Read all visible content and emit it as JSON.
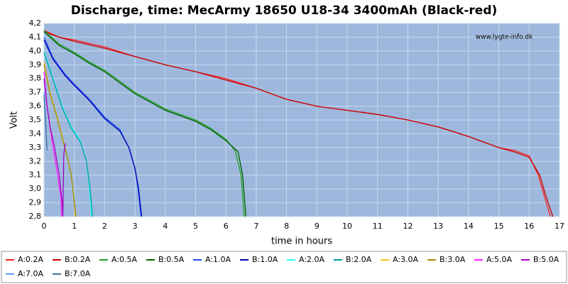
{
  "chart_data": {
    "type": "line",
    "title": "Discharge, time: MecArmy 18650 U18-34 3400mAh (Black-red)",
    "watermark": "www.lygte-info.dk",
    "xlabel": "time in hours",
    "ylabel": "Volt",
    "xlim": [
      0,
      17
    ],
    "ylim": [
      2.8,
      4.2
    ],
    "xticks": [
      0,
      1,
      2,
      3,
      4,
      5,
      6,
      7,
      8,
      9,
      10,
      11,
      12,
      13,
      14,
      15,
      16,
      17
    ],
    "yticks": [
      {
        "value": 2.8,
        "label": "2,8"
      },
      {
        "value": 2.9,
        "label": "2,9"
      },
      {
        "value": 3.0,
        "label": "3,0"
      },
      {
        "value": 3.1,
        "label": "3,1"
      },
      {
        "value": 3.2,
        "label": "3,2"
      },
      {
        "value": 3.3,
        "label": "3,3"
      },
      {
        "value": 3.4,
        "label": "3,4"
      },
      {
        "value": 3.5,
        "label": "3,5"
      },
      {
        "value": 3.6,
        "label": "3,6"
      },
      {
        "value": 3.7,
        "label": "3,7"
      },
      {
        "value": 3.8,
        "label": "3,8"
      },
      {
        "value": 3.9,
        "label": "3,9"
      },
      {
        "value": 4.0,
        "label": "4,0"
      },
      {
        "value": 4.1,
        "label": "4,1"
      },
      {
        "value": 4.2,
        "label": "4,2"
      }
    ],
    "grid": true,
    "background": "#9db8dc",
    "series": [
      {
        "name": "A:0.2A",
        "color": "#ff2020",
        "x": [
          0,
          0.5,
          1,
          2,
          3,
          4,
          5,
          6,
          7,
          8,
          9,
          10,
          11,
          12,
          13,
          14,
          15,
          15.5,
          16,
          16.3,
          16.5,
          16.7
        ],
        "values": [
          4.15,
          4.1,
          4.08,
          4.03,
          3.96,
          3.9,
          3.85,
          3.8,
          3.73,
          3.65,
          3.6,
          3.57,
          3.54,
          3.5,
          3.45,
          3.38,
          3.3,
          3.28,
          3.24,
          3.1,
          2.95,
          2.8
        ]
      },
      {
        "name": "B:0.2A",
        "color": "#c80000",
        "x": [
          0,
          0.5,
          1,
          2,
          3,
          4,
          5,
          6,
          7,
          8,
          9,
          10,
          11,
          12,
          13,
          14,
          15,
          15.5,
          16,
          16.35,
          16.55,
          16.78
        ],
        "values": [
          4.14,
          4.1,
          4.07,
          4.02,
          3.96,
          3.9,
          3.85,
          3.79,
          3.73,
          3.65,
          3.6,
          3.57,
          3.54,
          3.5,
          3.45,
          3.38,
          3.3,
          3.27,
          3.23,
          3.1,
          2.95,
          2.8
        ]
      },
      {
        "name": "A:0.5A",
        "color": "#20a020",
        "x": [
          0,
          0.5,
          1,
          1.5,
          2,
          3,
          4,
          5,
          5.5,
          6,
          6.3,
          6.5,
          6.6
        ],
        "values": [
          4.15,
          4.05,
          3.99,
          3.92,
          3.86,
          3.7,
          3.58,
          3.5,
          3.44,
          3.36,
          3.28,
          3.1,
          2.8
        ]
      },
      {
        "name": "B:0.5A",
        "color": "#006000",
        "x": [
          0,
          0.5,
          1,
          1.5,
          2,
          3,
          4,
          5,
          5.5,
          6,
          6.4,
          6.55,
          6.66
        ],
        "values": [
          4.14,
          4.04,
          3.98,
          3.91,
          3.85,
          3.69,
          3.57,
          3.49,
          3.43,
          3.35,
          3.27,
          3.1,
          2.8
        ]
      },
      {
        "name": "A:1.0A",
        "color": "#2050ff",
        "x": [
          0,
          0.3,
          0.7,
          1,
          1.5,
          2,
          2.5,
          2.8,
          3,
          3.1,
          3.2
        ],
        "values": [
          4.1,
          3.95,
          3.83,
          3.76,
          3.65,
          3.52,
          3.43,
          3.3,
          3.15,
          3.0,
          2.8
        ]
      },
      {
        "name": "B:1.0A",
        "color": "#0000b0",
        "x": [
          0,
          0.3,
          0.7,
          1,
          1.5,
          2,
          2.5,
          2.8,
          3,
          3.12,
          3.22
        ],
        "values": [
          4.08,
          3.94,
          3.82,
          3.75,
          3.64,
          3.51,
          3.42,
          3.3,
          3.15,
          3.0,
          2.8
        ]
      },
      {
        "name": "A:2.0A",
        "color": "#20ffff",
        "x": [
          0,
          0.3,
          0.6,
          0.9,
          1.2,
          1.4,
          1.5,
          1.57
        ],
        "values": [
          4.0,
          3.8,
          3.6,
          3.45,
          3.35,
          3.2,
          3.0,
          2.8
        ]
      },
      {
        "name": "B:2.0A",
        "color": "#00a0a0",
        "x": [
          0,
          0.3,
          0.6,
          0.9,
          1.2,
          1.4,
          1.52,
          1.6
        ],
        "values": [
          3.99,
          3.79,
          3.59,
          3.44,
          3.34,
          3.2,
          3.0,
          2.8
        ]
      },
      {
        "name": "A:3.0A",
        "color": "#ffc020",
        "x": [
          0,
          0.2,
          0.4,
          0.6,
          0.75,
          0.9,
          1.0,
          1.03
        ],
        "values": [
          3.92,
          3.7,
          3.55,
          3.38,
          3.25,
          3.1,
          2.9,
          2.8
        ]
      },
      {
        "name": "B:3.0A",
        "color": "#a09000",
        "x": [
          0,
          0.2,
          0.4,
          0.6,
          0.75,
          0.9,
          1.0,
          1.05
        ],
        "values": [
          3.9,
          3.69,
          3.54,
          3.37,
          3.25,
          3.1,
          2.9,
          2.8
        ]
      },
      {
        "name": "A:5.0A",
        "color": "#ff20ff",
        "x": [
          0,
          0.1,
          0.2,
          0.3,
          0.45,
          0.55,
          0.58
        ],
        "values": [
          3.85,
          3.6,
          3.45,
          3.3,
          3.1,
          2.95,
          2.8
        ]
      },
      {
        "name": "B:5.0A",
        "color": "#a000c0",
        "x": [
          0,
          0.1,
          0.2,
          0.35,
          0.5,
          0.6,
          0.62,
          0.65,
          0.7
        ],
        "values": [
          3.8,
          3.6,
          3.45,
          3.3,
          3.1,
          2.9,
          2.8,
          3.25,
          3.33
        ]
      },
      {
        "name": "A:7.0A",
        "color": "#60a0ff",
        "x": [
          0,
          0.05,
          0.1
        ],
        "values": [
          3.7,
          3.5,
          3.3
        ]
      },
      {
        "name": "B:7.0A",
        "color": "#4070a0",
        "x": [
          0,
          0.05,
          0.1
        ],
        "values": [
          3.68,
          3.48,
          3.28
        ]
      }
    ]
  }
}
